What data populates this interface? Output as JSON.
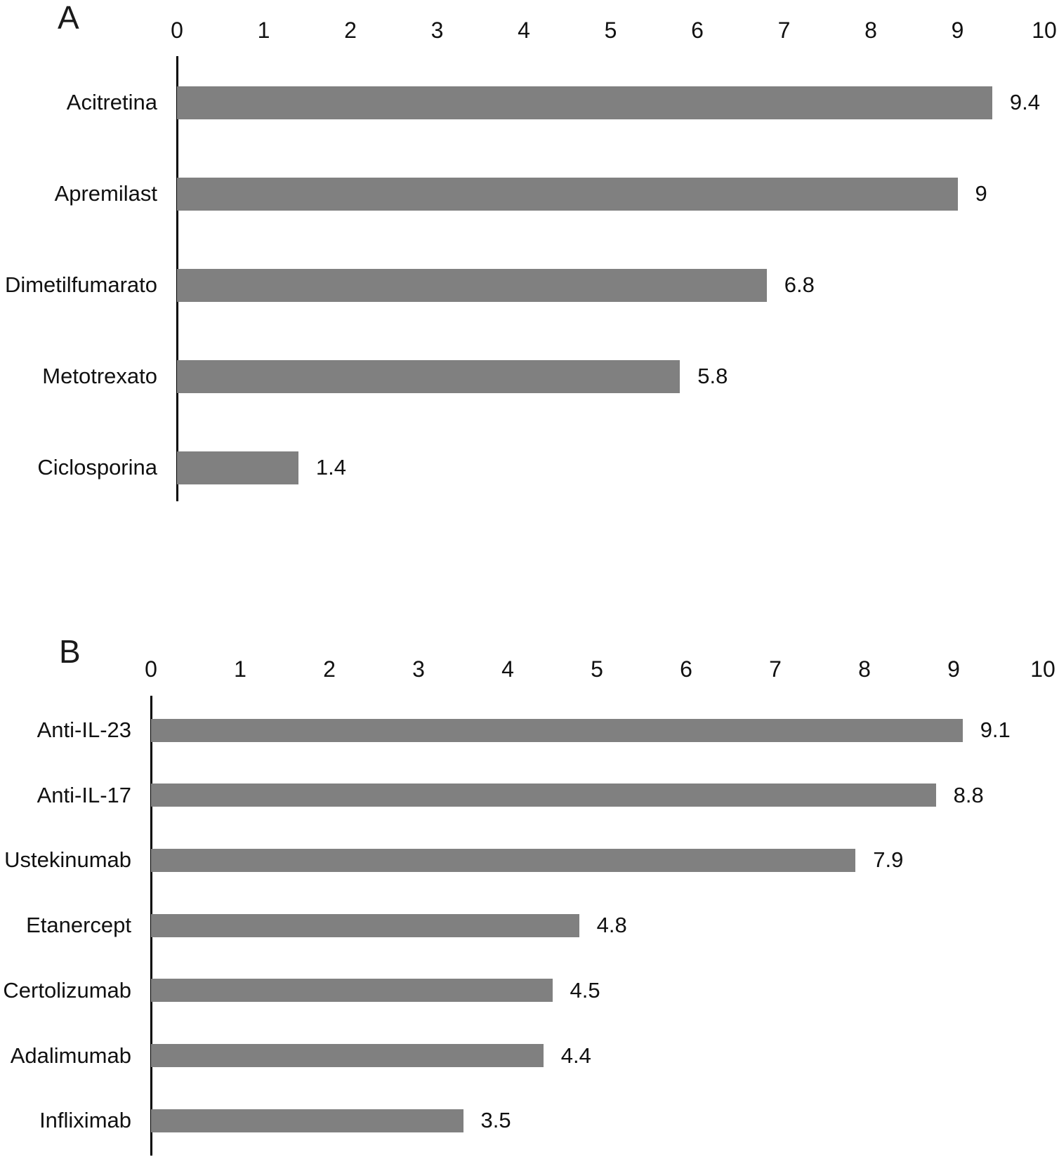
{
  "figure": {
    "background_color": "#ffffff",
    "text_color": "#000000"
  },
  "chart_data": [
    {
      "type": "bar",
      "orientation": "horizontal",
      "panel_label": "A",
      "title": "",
      "xlabel": "",
      "ylabel": "",
      "xlim": [
        0,
        10
      ],
      "x_ticks": [
        "0",
        "1",
        "2",
        "3",
        "4",
        "5",
        "6",
        "7",
        "8",
        "9",
        "10"
      ],
      "grid": false,
      "legend_position": "none",
      "bar_color": "#808080",
      "axis_line_color": "#000000",
      "categories": [
        "Acitretina",
        "Apremilast",
        "Dimetilfumarato",
        "Metotrexato",
        "Ciclosporina"
      ],
      "values": [
        9.4,
        9,
        6.8,
        5.8,
        1.4
      ],
      "value_labels": [
        "9.4",
        "9",
        "6.8",
        "5.8",
        "1.4"
      ]
    },
    {
      "type": "bar",
      "orientation": "horizontal",
      "panel_label": "B",
      "title": "",
      "xlabel": "",
      "ylabel": "",
      "xlim": [
        0,
        10
      ],
      "x_ticks": [
        "0",
        "1",
        "2",
        "3",
        "4",
        "5",
        "6",
        "7",
        "8",
        "9",
        "10"
      ],
      "grid": false,
      "legend_position": "none",
      "bar_color": "#808080",
      "axis_line_color": "#000000",
      "categories": [
        "Anti-IL-23",
        "Anti-IL-17",
        "Ustekinumab",
        "Etanercept",
        "Certolizumab",
        "Adalimumab",
        "Infliximab"
      ],
      "values": [
        9.1,
        8.8,
        7.9,
        4.8,
        4.5,
        4.4,
        3.5
      ],
      "value_labels": [
        "9.1",
        "8.8",
        "7.9",
        "4.8",
        "4.5",
        "4.4",
        "3.5"
      ]
    }
  ]
}
